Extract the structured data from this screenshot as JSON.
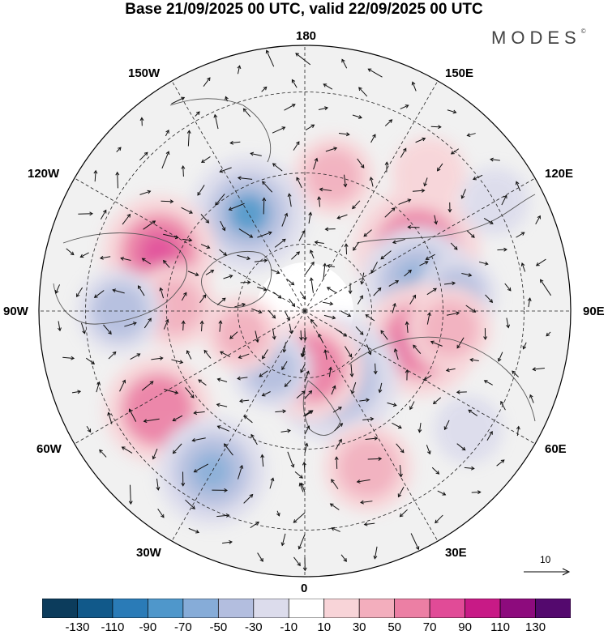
{
  "title": "Base 21/09/2025 00 UTC, valid 22/09/2025 00 UTC",
  "logo": "MODES",
  "longitude_labels": {
    "deg180": "180",
    "deg150e": "150E",
    "deg120e": "120E",
    "deg90e": "90E",
    "deg60e": "60E",
    "deg30e": "30E",
    "deg0": "0",
    "deg30w": "30W",
    "deg60w": "60W",
    "deg90w": "90W",
    "deg120w": "120W",
    "deg150w": "150W"
  },
  "reference_vector": {
    "label": "10",
    "value": 10
  },
  "colorbar": {
    "colors": [
      "#0c3c5c",
      "#11598a",
      "#2a7bb7",
      "#4f97cb",
      "#86acd8",
      "#b3bedf",
      "#dcdcec",
      "#ffffff",
      "#f8d4d8",
      "#f3aebd",
      "#ec7fa4",
      "#e14b97",
      "#c81a86",
      "#8d0b7d",
      "#54096e"
    ],
    "labels": [
      "-130",
      "-110",
      "-90",
      "-70",
      "-50",
      "-30",
      "-10",
      "10",
      "30",
      "50",
      "70",
      "90",
      "110",
      "130"
    ]
  },
  "anomaly_cells": [
    {
      "lon": 168,
      "lat": 50,
      "value": 35
    },
    {
      "lon": -150,
      "lat": 57,
      "value": -75
    },
    {
      "lon": 138,
      "lat": 38,
      "value": 28
    },
    {
      "lon": 118,
      "lat": 53,
      "value": 88
    },
    {
      "lon": -112,
      "lat": 45,
      "value": 72
    },
    {
      "lon": -92,
      "lat": 52,
      "value": 40
    },
    {
      "lon": 104,
      "lat": 56,
      "value": -70
    },
    {
      "lon": 96,
      "lat": 46,
      "value": -35
    },
    {
      "lon": -90,
      "lat": 38,
      "value": -40
    },
    {
      "lon": 76,
      "lat": 55,
      "value": 72
    },
    {
      "lon": 83,
      "lat": 48,
      "value": 40
    },
    {
      "lon": 24,
      "lat": 68,
      "value": -88
    },
    {
      "lon": 6,
      "lat": 73,
      "value": 62
    },
    {
      "lon": -30,
      "lat": 70,
      "value": -35
    },
    {
      "lon": -56,
      "lat": 40,
      "value": 65
    },
    {
      "lon": -30,
      "lat": 38,
      "value": -68
    },
    {
      "lon": 22,
      "lat": 42,
      "value": 45
    },
    {
      "lon": -70,
      "lat": 70,
      "value": 30
    },
    {
      "lon": 120,
      "lat": 30,
      "value": -22
    },
    {
      "lon": 54,
      "lat": 34,
      "value": -22
    }
  ]
}
